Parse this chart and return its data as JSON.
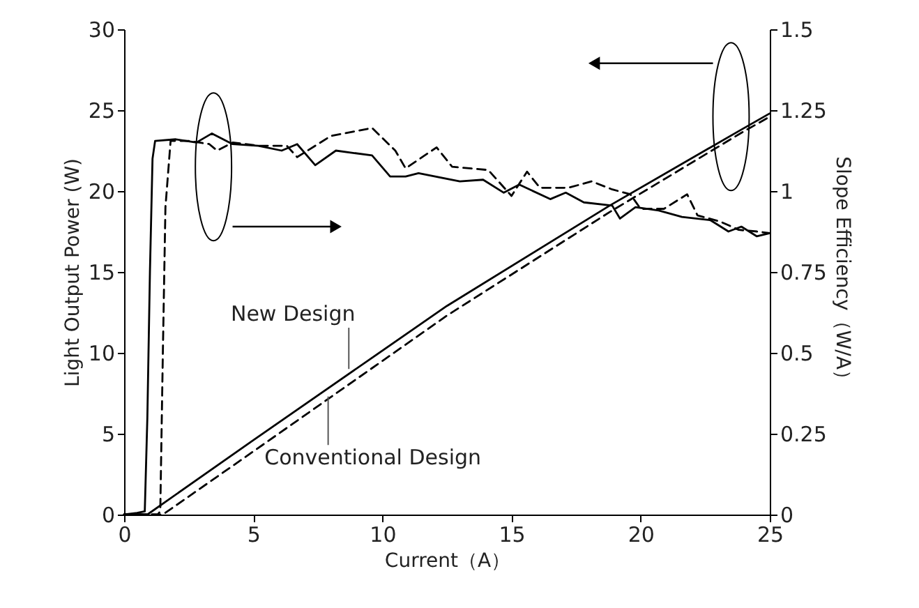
{
  "chart_data": {
    "type": "line",
    "xlabel": "Current（A）",
    "ylabel": "Light Output Power (W)",
    "y2label": "Slope Efficiency（W/A）",
    "xlim": [
      0,
      25
    ],
    "xticks": [
      0,
      5,
      10,
      15,
      20,
      25
    ],
    "ylim": [
      0,
      30
    ],
    "yticks": [
      0,
      5,
      10,
      15,
      20,
      25,
      30
    ],
    "y2lim": [
      0,
      1.5
    ],
    "y2ticks": [
      0,
      0.25,
      0.5,
      0.75,
      1,
      1.25,
      1.5
    ],
    "grid": false,
    "marker": "none",
    "series": [
      {
        "color": "#000000",
        "line_style": "solid",
        "x": [
          0,
          0.5,
          0.9,
          5,
          12.5,
          18.8,
          23.9,
          25
        ],
        "values": [
          0,
          0,
          0,
          4.6,
          12.9,
          19.1,
          23.8,
          24.8
        ]
      },
      {
        "color": "#000000",
        "line_style": "dashed",
        "x": [
          0,
          1.0,
          1.5,
          5,
          12.5,
          18.8,
          23.9,
          25
        ],
        "values": [
          0,
          0,
          0,
          3.9,
          12.3,
          18.7,
          23.6,
          24.6
        ]
      },
      {
        "axis": "y2",
        "color": "#000000",
        "line_style": "solid",
        "x": [
          0,
          0.5,
          0.8,
          0.9,
          1.0,
          1.1,
          1.2,
          2.0,
          2.8,
          3.4,
          4.2,
          5.2,
          6.1,
          6.7,
          7.4,
          8.2,
          9.6,
          10.3,
          10.9,
          11.4,
          13.0,
          13.9,
          14.7,
          15.3,
          16.5,
          17.1,
          17.8,
          18.9,
          19.2,
          19.8,
          20.7,
          21.6,
          22.7,
          23.4,
          23.9,
          24.5,
          25
        ],
        "values": [
          0,
          0.005,
          0.01,
          0.3,
          0.75,
          1.1,
          1.155,
          1.16,
          1.15,
          1.178,
          1.145,
          1.14,
          1.125,
          1.145,
          1.08,
          1.125,
          1.11,
          1.045,
          1.045,
          1.055,
          1.03,
          1.035,
          0.995,
          1.02,
          0.975,
          0.995,
          0.965,
          0.955,
          0.915,
          0.95,
          0.94,
          0.92,
          0.91,
          0.875,
          0.89,
          0.86,
          0.87
        ]
      },
      {
        "axis": "y2",
        "color": "#000000",
        "line_style": "dashed",
        "x": [
          0,
          1.3,
          1.4,
          1.5,
          1.6,
          1.8,
          2.5,
          3.3,
          3.6,
          4.2,
          5.2,
          6.3,
          6.7,
          8.0,
          9.6,
          10.5,
          10.9,
          12.1,
          12.7,
          14.1,
          15.0,
          15.6,
          16.1,
          17.2,
          18.1,
          18.9,
          19.6,
          20.0,
          20.9,
          21.8,
          22.2,
          23.1,
          23.8,
          24.5,
          25
        ],
        "values": [
          0,
          0,
          0.01,
          0.5,
          0.95,
          1.155,
          1.155,
          1.145,
          1.125,
          1.15,
          1.14,
          1.14,
          1.105,
          1.17,
          1.195,
          1.125,
          1.07,
          1.135,
          1.075,
          1.065,
          0.985,
          1.06,
          1.01,
          1.01,
          1.03,
          1.005,
          0.99,
          0.945,
          0.945,
          0.99,
          0.925,
          0.905,
          0.88,
          0.875,
          0.87
        ]
      }
    ],
    "annotations": [
      {
        "text": "New Design",
        "x": 8.7,
        "y": 9.0
      },
      {
        "text": "Conventional Design",
        "x": 7.9,
        "y": 7.3
      }
    ]
  }
}
